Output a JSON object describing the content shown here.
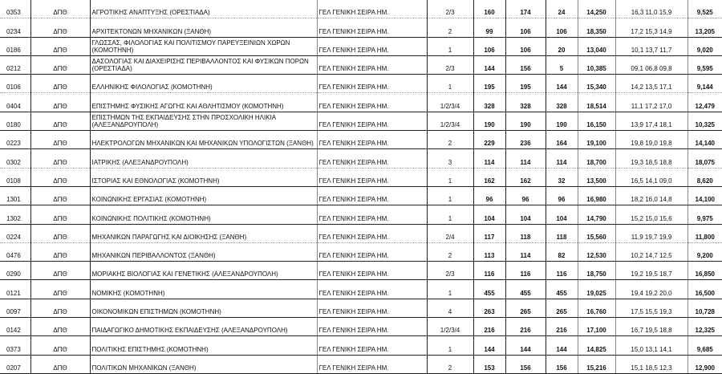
{
  "rows": [
    {
      "code": "0353",
      "inst": "ΔΠΘ",
      "dept": "ΑΓΡΟΤΙΚΗΣ ΑΝΑΠΤΥΞΗΣ (ΟΡΕΣΤΙΑΔΑ)",
      "series": "ΓΕΛ ΓΕΝΙΚΗ ΣΕΙΡΑ ΗΜ.",
      "field": "2/3",
      "a": "160",
      "b": "174",
      "c": "24",
      "base": "14,250",
      "grades": "16,3 11,0 15,9",
      "last": "9,525"
    },
    {
      "code": "0234",
      "inst": "ΔΠΘ",
      "dept": "ΑΡΧΙΤΕΚΤΟΝΩΝ ΜΗΧΑΝΙΚΩΝ (ΞΑΝΘΗ)",
      "series": "ΓΕΛ ΓΕΝΙΚΗ ΣΕΙΡΑ ΗΜ.",
      "field": "2",
      "a": "99",
      "b": "106",
      "c": "106",
      "base": "18,350",
      "grades": "17,2 15,3 14,9",
      "last": "13,205"
    },
    {
      "code": "0186",
      "inst": "ΔΠΘ",
      "dept": "ΓΛΩΣΣΑΣ, ΦΙΛΟΛΟΓΙΑΣ ΚΑΙ ΠΟΛΙΤΙΣΜΟΥ ΠΑΡΕΥΞΕΙΝΙΩΝ ΧΩΡΩΝ (ΚΟΜΟΤΗΝΗ)",
      "series": "ΓΕΛ ΓΕΝΙΚΗ ΣΕΙΡΑ ΗΜ.",
      "field": "1",
      "a": "106",
      "b": "106",
      "c": "20",
      "base": "13,040",
      "grades": "10,1 13,7 11,7",
      "last": "9,020"
    },
    {
      "code": "0212",
      "inst": "ΔΠΘ",
      "dept": "ΔΑΣΟΛΟΓΙΑΣ ΚΑΙ ΔΙΑΧΕΙΡΙΣΗΣ ΠΕΡΙΒΑΛΛΟΝΤΟΣ ΚΑΙ ΦΥΣΙΚΩΝ ΠΟΡΩΝ (ΟΡΕΣΤΙΑΔΑ)",
      "series": "ΓΕΛ ΓΕΝΙΚΗ ΣΕΙΡΑ ΗΜ.",
      "field": "2/3",
      "a": "144",
      "b": "156",
      "c": "5",
      "base": "10,385",
      "grades": "09,1 06,8 09,8",
      "last": "9,595"
    },
    {
      "code": "0106",
      "inst": "ΔΠΘ",
      "dept": "ΕΛΛΗΝΙΚΗΣ ΦΙΛΟΛΟΓΙΑΣ (ΚΟΜΟΤΗΝΗ)",
      "series": "ΓΕΛ ΓΕΝΙΚΗ ΣΕΙΡΑ ΗΜ.",
      "field": "1",
      "a": "195",
      "b": "195",
      "c": "144",
      "base": "15,340",
      "grades": "14,2 13,5 17,1",
      "last": "9,144"
    },
    {
      "code": "0404",
      "inst": "ΔΠΘ",
      "dept": "ΕΠΙΣΤΗΜΗΣ ΦΥΣΙΚΗΣ ΑΓΩΓΗΣ ΚΑΙ ΑΘΛΗΤΙΣΜΟΥ (ΚΟΜΟΤΗΝΗ)",
      "series": "ΓΕΛ ΓΕΝΙΚΗ ΣΕΙΡΑ ΗΜ.",
      "field": "1/2/3/4",
      "a": "328",
      "b": "328",
      "c": "328",
      "base": "18,514",
      "grades": "11,1 17,2 17,0",
      "last": "12,479"
    },
    {
      "code": "0180",
      "inst": "ΔΠΘ",
      "dept": "ΕΠΙΣΤΗΜΩΝ ΤΗΣ ΕΚΠΑΙΔΕΥΣΗΣ ΣΤΗΝ ΠΡΟΣΧΟΛΙΚΗ ΗΛΙΚΙΑ (ΑΛΕΞΑΝΔΡΟΥΠΟΛΗ)",
      "series": "ΓΕΛ ΓΕΝΙΚΗ ΣΕΙΡΑ ΗΜ.",
      "field": "1/2/3/4",
      "a": "190",
      "b": "190",
      "c": "190",
      "base": "16,150",
      "grades": "13,9 17,4 18,1",
      "last": "10,325"
    },
    {
      "code": "0223",
      "inst": "ΔΠΘ",
      "dept": "ΗΛΕΚΤΡΟΛΟΓΩΝ ΜΗΧΑΝΙΚΩΝ ΚΑΙ ΜΗΧΑΝΙΚΩΝ ΥΠΟΛΟΓΙΣΤΩΝ (ΞΑΝΘΗ)",
      "series": "ΓΕΛ ΓΕΝΙΚΗ ΣΕΙΡΑ ΗΜ.",
      "field": "2",
      "a": "229",
      "b": "236",
      "c": "164",
      "base": "19,100",
      "grades": "19,8 19,0 19,8",
      "last": "14,140"
    },
    {
      "code": "0302",
      "inst": "ΔΠΘ",
      "dept": "ΙΑΤΡΙΚΗΣ (ΑΛΕΞΑΝΔΡΟΥΠΟΛΗ)",
      "series": "ΓΕΛ ΓΕΝΙΚΗ ΣΕΙΡΑ ΗΜ.",
      "field": "3",
      "a": "114",
      "b": "114",
      "c": "114",
      "base": "18,700",
      "grades": "19,3 18,5 18,8",
      "last": "18,075"
    },
    {
      "code": "0108",
      "inst": "ΔΠΘ",
      "dept": "ΙΣΤΟΡΙΑΣ ΚΑΙ ΕΘΝΟΛΟΓΙΑΣ (ΚΟΜΟΤΗΝΗ)",
      "series": "ΓΕΛ ΓΕΝΙΚΗ ΣΕΙΡΑ ΗΜ.",
      "field": "1",
      "a": "162",
      "b": "162",
      "c": "32",
      "base": "13,500",
      "grades": "16,5 14,1 09,0",
      "last": "8,620"
    },
    {
      "code": "1301",
      "inst": "ΔΠΘ",
      "dept": "ΚΟΙΝΩΝΙΚΗΣ ΕΡΓΑΣΙΑΣ (ΚΟΜΟΤΗΝΗ)",
      "series": "ΓΕΛ ΓΕΝΙΚΗ ΣΕΙΡΑ ΗΜ.",
      "field": "1",
      "a": "96",
      "b": "96",
      "c": "96",
      "base": "16,980",
      "grades": "18,2 16,0 14,8",
      "last": "14,100"
    },
    {
      "code": "1302",
      "inst": "ΔΠΘ",
      "dept": "ΚΟΙΝΩΝΙΚΗΣ ΠΟΛΙΤΙΚΗΣ (ΚΟΜΟΤΗΝΗ)",
      "series": "ΓΕΛ ΓΕΝΙΚΗ ΣΕΙΡΑ ΗΜ.",
      "field": "1",
      "a": "104",
      "b": "104",
      "c": "104",
      "base": "14,790",
      "grades": "15,2 15,0 15,6",
      "last": "9,975"
    },
    {
      "code": "0224",
      "inst": "ΔΠΘ",
      "dept": "ΜΗΧΑΝΙΚΩΝ ΠΑΡΑΓΩΓΗΣ ΚΑΙ ΔΙΟΙΚΗΣΗΣ (ΞΑΝΘΗ)",
      "series": "ΓΕΛ ΓΕΝΙΚΗ ΣΕΙΡΑ ΗΜ.",
      "field": "2/4",
      "a": "117",
      "b": "118",
      "c": "118",
      "base": "15,560",
      "grades": "11,9 19,7 19,9",
      "last": "11,800"
    },
    {
      "code": "0476",
      "inst": "ΔΠΘ",
      "dept": "ΜΗΧΑΝΙΚΩΝ ΠΕΡΙΒΑΛΛΟΝΤΟΣ (ΞΑΝΘΗ)",
      "series": "ΓΕΛ ΓΕΝΙΚΗ ΣΕΙΡΑ ΗΜ.",
      "field": "2",
      "a": "113",
      "b": "114",
      "c": "82",
      "base": "12,530",
      "grades": "10,2 14,7 12,5",
      "last": "9,200"
    },
    {
      "code": "0290",
      "inst": "ΔΠΘ",
      "dept": "ΜΟΡΙΑΚΗΣ ΒΙΟΛΟΓΙΑΣ ΚΑΙ ΓΕΝΕΤΙΚΗΣ (ΑΛΕΞΑΝΔΡΟΥΠΟΛΗ)",
      "series": "ΓΕΛ ΓΕΝΙΚΗ ΣΕΙΡΑ ΗΜ.",
      "field": "2/3",
      "a": "116",
      "b": "116",
      "c": "116",
      "base": "18,750",
      "grades": "19,2 19,5 18,7",
      "last": "16,850"
    },
    {
      "code": "0121",
      "inst": "ΔΠΘ",
      "dept": "ΝΟΜΙΚΗΣ (ΚΟΜΟΤΗΝΗ)",
      "series": "ΓΕΛ ΓΕΝΙΚΗ ΣΕΙΡΑ ΗΜ.",
      "field": "1",
      "a": "455",
      "b": "455",
      "c": "455",
      "base": "19,025",
      "grades": "19,4 19,2 20,0",
      "last": "16,500"
    },
    {
      "code": "0097",
      "inst": "ΔΠΘ",
      "dept": "ΟΙΚΟΝΟΜΙΚΩΝ ΕΠΙΣΤΗΜΩΝ (ΚΟΜΟΤΗΝΗ)",
      "series": "ΓΕΛ ΓΕΝΙΚΗ ΣΕΙΡΑ ΗΜ.",
      "field": "4",
      "a": "263",
      "b": "265",
      "c": "265",
      "base": "16,760",
      "grades": "17,5 15,5 19,3",
      "last": "10,728"
    },
    {
      "code": "0142",
      "inst": "ΔΠΘ",
      "dept": "ΠΑΙΔΑΓΩΓΙΚΟ ΔΗΜΟΤΙΚΗΣ ΕΚΠΑΙΔΕΥΣΗΣ (ΑΛΕΞΑΝΔΡΟΥΠΟΛΗ)",
      "series": "ΓΕΛ ΓΕΝΙΚΗ ΣΕΙΡΑ ΗΜ.",
      "field": "1/2/3/4",
      "a": "216",
      "b": "216",
      "c": "216",
      "base": "17,100",
      "grades": "16,7 19,5 18,8",
      "last": "12,325"
    },
    {
      "code": "0373",
      "inst": "ΔΠΘ",
      "dept": "ΠΟΛΙΤΙΚΗΣ ΕΠΙΣΤΗΜΗΣ (ΚΟΜΟΤΗΝΗ)",
      "series": "ΓΕΛ ΓΕΝΙΚΗ ΣΕΙΡΑ ΗΜ.",
      "field": "1",
      "a": "144",
      "b": "144",
      "c": "144",
      "base": "14,825",
      "grades": "15,0 13,1 14,1",
      "last": "9,685"
    },
    {
      "code": "0207",
      "inst": "ΔΠΘ",
      "dept": "ΠΟΛΙΤΙΚΩΝ ΜΗΧΑΝΙΚΩΝ (ΞΑΝΘΗ)",
      "series": "ΓΕΛ ΓΕΝΙΚΗ ΣΕΙΡΑ ΗΜ.",
      "field": "2",
      "a": "153",
      "b": "156",
      "c": "156",
      "base": "15,216",
      "grades": "15,1 18,5 12,3",
      "last": "12,900"
    }
  ]
}
